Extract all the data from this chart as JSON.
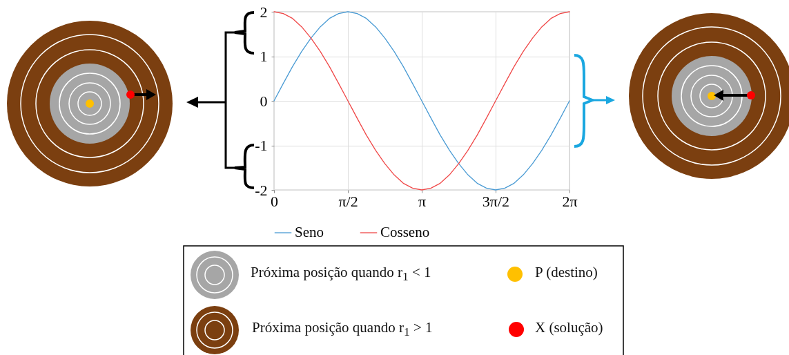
{
  "chart_data": {
    "type": "line",
    "x": [
      0,
      0.196,
      0.393,
      0.589,
      0.785,
      0.982,
      1.178,
      1.374,
      1.571,
      1.767,
      1.963,
      2.16,
      2.356,
      2.553,
      2.749,
      2.945,
      3.142,
      3.338,
      3.534,
      3.731,
      3.927,
      4.123,
      4.32,
      4.516,
      4.712,
      4.909,
      5.105,
      5.301,
      5.498,
      5.694,
      5.89,
      6.087,
      6.283
    ],
    "series": [
      {
        "name": "Seno",
        "color": "#4a9bd4",
        "values": [
          0,
          0.39,
          0.77,
          1.11,
          1.41,
          1.66,
          1.85,
          1.96,
          2,
          1.96,
          1.85,
          1.66,
          1.41,
          1.11,
          0.77,
          0.39,
          0,
          -0.39,
          -0.77,
          -1.11,
          -1.41,
          -1.66,
          -1.85,
          -1.96,
          -2,
          -1.96,
          -1.85,
          -1.66,
          -1.41,
          -1.11,
          -0.77,
          -0.39,
          0
        ]
      },
      {
        "name": "Cosseno",
        "color": "#f04848",
        "values": [
          2,
          1.96,
          1.85,
          1.66,
          1.41,
          1.11,
          0.77,
          0.39,
          0,
          -0.39,
          -0.77,
          -1.11,
          -1.41,
          -1.66,
          -1.85,
          -1.96,
          -2,
          -1.96,
          -1.85,
          -1.66,
          -1.41,
          -1.11,
          -0.77,
          -0.39,
          0,
          0.39,
          0.77,
          1.11,
          1.41,
          1.66,
          1.85,
          1.96,
          2
        ]
      }
    ],
    "xlim": [
      0,
      6.283
    ],
    "xticks": [
      0,
      {
        "value": 1.571,
        "label": "π/2"
      },
      {
        "value": 3.142,
        "label": "π"
      },
      {
        "value": 4.712,
        "label": "3π/2"
      },
      {
        "value": 6.283,
        "label": "2π"
      }
    ],
    "ylim": [
      -2,
      2
    ],
    "yticks": [
      -2,
      -1,
      0,
      1,
      2
    ],
    "grid": true,
    "legend": "bottom",
    "marker": "none",
    "line_style": "solid",
    "annotations": [
      "Próxima posição quando r$_{1}$ < 1",
      "P (destino)",
      "Próxima posição quando r$_{1}$ > 1",
      "X (solução)"
    ]
  }
}
